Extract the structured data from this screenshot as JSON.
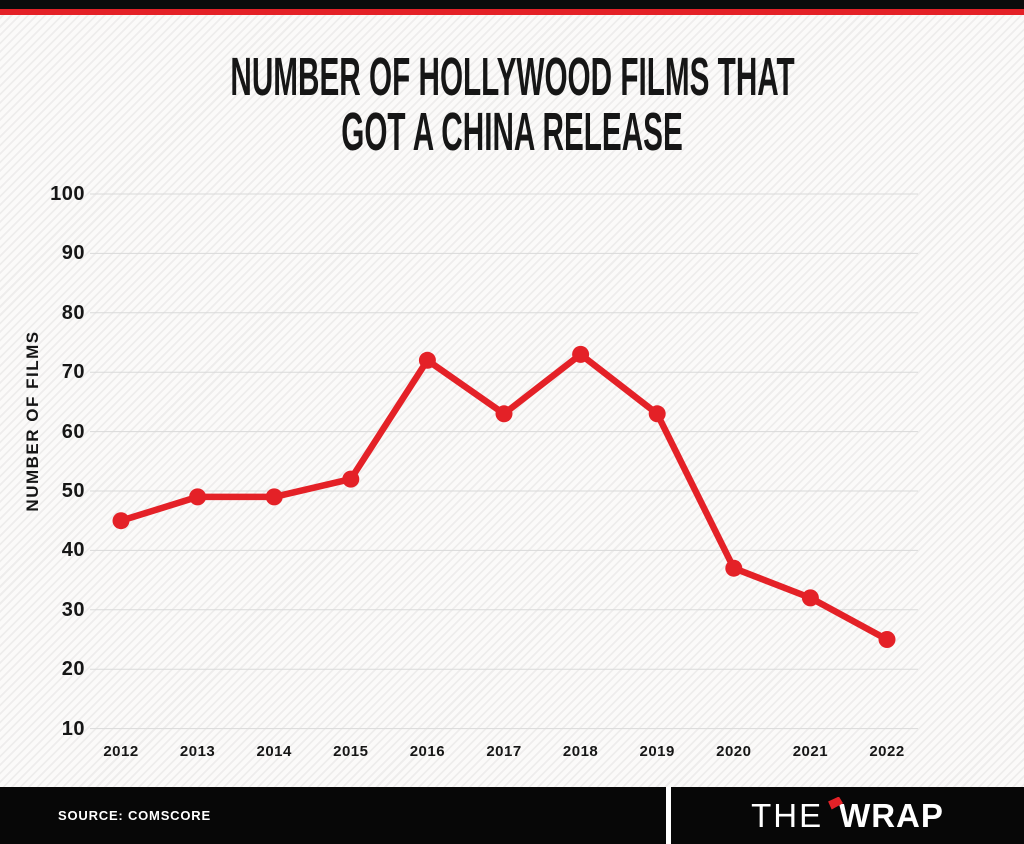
{
  "header": {
    "title_line1": "NUMBER OF HOLLYWOOD FILMS THAT",
    "title_line2": "GOT A CHINA RELEASE"
  },
  "chart_data": {
    "type": "line",
    "title": "NUMBER OF HOLLYWOOD FILMS THAT GOT A CHINA RELEASE",
    "categories": [
      "2012",
      "2013",
      "2014",
      "2015",
      "2016",
      "2017",
      "2018",
      "2019",
      "2020",
      "2021",
      "2022"
    ],
    "values": [
      45,
      49,
      49,
      52,
      72,
      63,
      73,
      63,
      37,
      32,
      25
    ],
    "xlabel": "",
    "ylabel": "NUMBER OF FILMS",
    "yticks": [
      100,
      90,
      80,
      70,
      60,
      50,
      40,
      30,
      20,
      10
    ],
    "ylim": [
      10,
      100
    ],
    "grid": true,
    "legend": "none",
    "line_color": "#e42127",
    "marker": "circle"
  },
  "footer": {
    "source": "SOURCE: COMSCORE",
    "brand": {
      "the": "THE",
      "wrap": "WRAP"
    }
  },
  "colors": {
    "accent_red": "#e42127",
    "top_bar_black": "#0b0b0b",
    "footer_black": "#070707",
    "grid_line": "#d9d9d9",
    "text_dark": "#161616",
    "background": "#fbfaf9"
  }
}
